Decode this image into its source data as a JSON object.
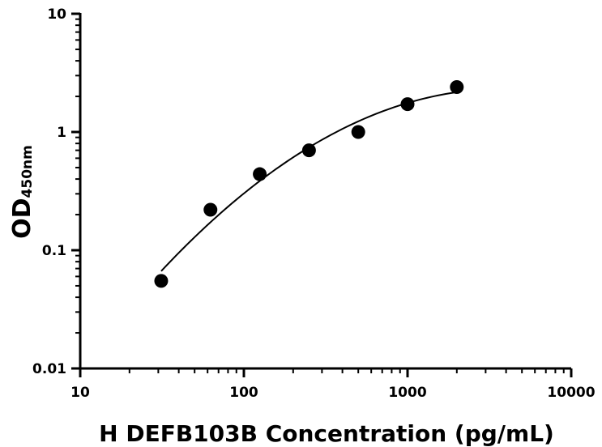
{
  "chart_data": {
    "type": "scatter",
    "xlabel": "H DEFB103B Concentration (pg/mL)",
    "ylabel_main": "OD",
    "ylabel_sub": "450nm",
    "x_scale": "log",
    "y_scale": "log",
    "xlim": [
      10,
      10000
    ],
    "ylim": [
      0.01,
      10
    ],
    "x_ticks": [
      {
        "value": 10,
        "label": "10"
      },
      {
        "value": 100,
        "label": "100"
      },
      {
        "value": 1000,
        "label": "1000"
      },
      {
        "value": 10000,
        "label": "10000"
      }
    ],
    "y_ticks": [
      {
        "value": 0.01,
        "label": "0.01"
      },
      {
        "value": 0.1,
        "label": "0.1"
      },
      {
        "value": 1,
        "label": "1"
      },
      {
        "value": 10,
        "label": "10"
      }
    ],
    "grid": false,
    "legend": "none",
    "points": [
      {
        "x": 31.25,
        "y": 0.055
      },
      {
        "x": 62.5,
        "y": 0.22
      },
      {
        "x": 125,
        "y": 0.44
      },
      {
        "x": 250,
        "y": 0.7
      },
      {
        "x": 500,
        "y": 1.0
      },
      {
        "x": 1000,
        "y": 1.72
      },
      {
        "x": 2000,
        "y": 2.4
      }
    ],
    "fit_curve": {
      "type": "power",
      "x_range": [
        31.25,
        2000
      ],
      "description": "smooth fitted curve through points"
    },
    "colors": {
      "marker": "#000000",
      "line": "#000000",
      "axis": "#000000"
    }
  }
}
